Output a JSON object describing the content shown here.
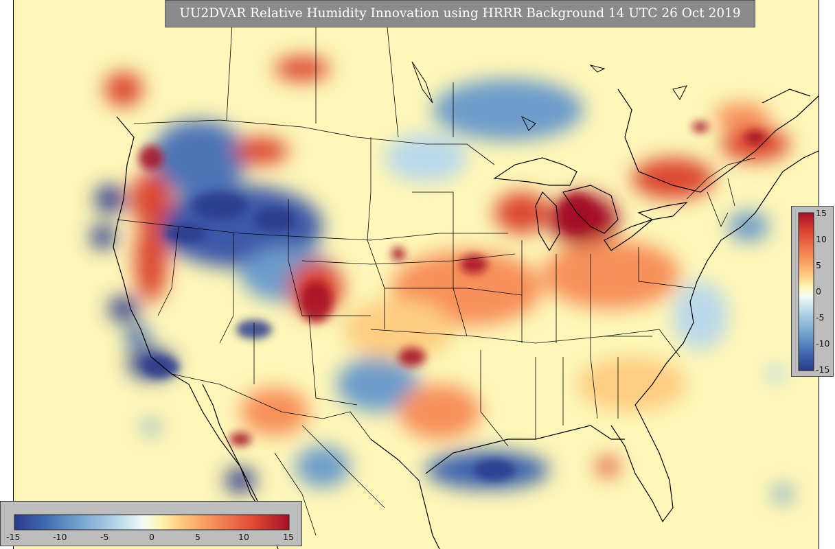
{
  "title": "UU2DVAR Relative Humidity Innovation using HRRR Background 14 UTC 26 Oct 2019",
  "colorbar": {
    "ticks_vertical": [
      "15",
      "10",
      "5",
      "0",
      "-5",
      "-10",
      "-15"
    ],
    "ticks_horizontal": [
      "-15",
      "-10",
      "-5",
      "0",
      "5",
      "10",
      "15"
    ],
    "min": -15,
    "max": 15,
    "colors": [
      "#2b3a8c",
      "#3d64ad",
      "#6d9ccb",
      "#b9d8ea",
      "#f4fbf7",
      "#fdf5b4",
      "#fdcd82",
      "#f7905a",
      "#dc4631",
      "#a50f26"
    ]
  },
  "map": {
    "background_color": "#fdf6b8",
    "outline_color": "#000000"
  }
}
